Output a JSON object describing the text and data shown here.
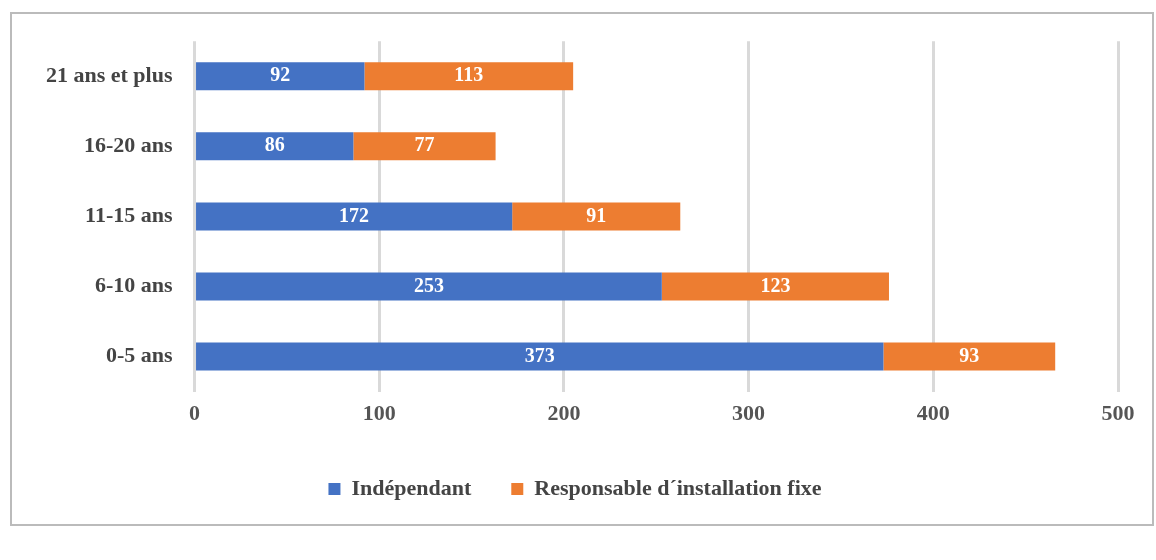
{
  "chart_data": {
    "type": "bar",
    "orientation": "horizontal",
    "stacked": true,
    "categories": [
      "21 ans et plus",
      "16-20 ans",
      "11-15 ans",
      "6-10 ans",
      "0-5 ans"
    ],
    "series": [
      {
        "name": "Indépendant",
        "color": "#4472c4",
        "values": [
          92,
          86,
          172,
          253,
          373
        ]
      },
      {
        "name": "Responsable d´installation fixe",
        "color": "#ed7d31",
        "values": [
          113,
          77,
          91,
          123,
          93
        ]
      }
    ],
    "xlim": [
      0,
      500
    ],
    "xticks": [
      0,
      100,
      200,
      300,
      400,
      500
    ],
    "grid": "x",
    "legend": "bottom",
    "data_labels": true
  }
}
